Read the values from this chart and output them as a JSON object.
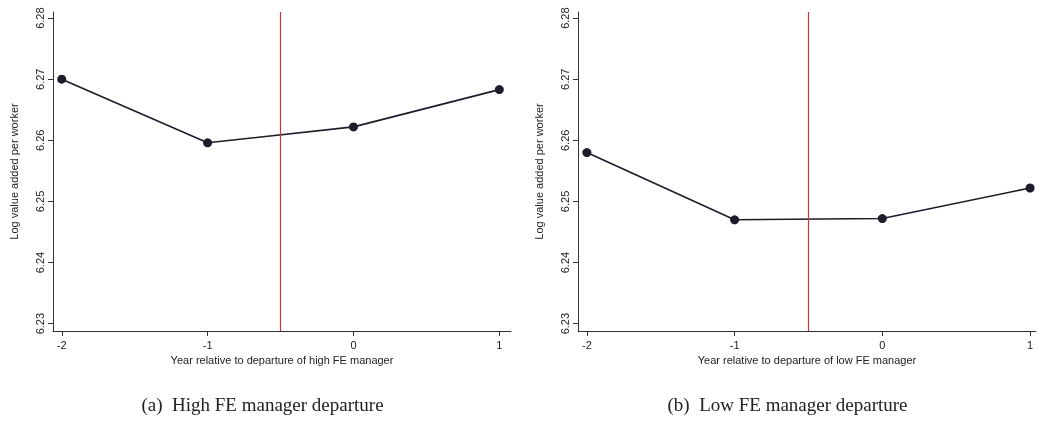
{
  "chart_data": [
    {
      "type": "line",
      "title": "(a)  High FE manager departure",
      "xlabel": "Year relative to departure of high FE manager",
      "ylabel": "Log value added per worker",
      "x": [
        -2,
        -1,
        0,
        1
      ],
      "series": [
        {
          "color": "#1c1c2a",
          "values": [
            6.27,
            6.2596,
            6.2622,
            6.2683
          ]
        }
      ],
      "xlim": [
        -2.06,
        1.08
      ],
      "xticks": [
        -2,
        -1,
        0,
        1
      ],
      "ylim": [
        6.2288,
        6.281
      ],
      "yticks": [
        6.23,
        6.24,
        6.25,
        6.26,
        6.27,
        6.28
      ],
      "ref_lines": [
        {
          "axis": "x",
          "value": -0.5,
          "color": "#c0393b"
        }
      ],
      "grid": false,
      "marker": "circle",
      "line_style": "solid"
    },
    {
      "type": "line",
      "title": "(b)  Low FE manager departure",
      "xlabel": "Year relative to departure of low FE manager",
      "ylabel": "Log value added per worker",
      "x": [
        -2,
        -1,
        0,
        1
      ],
      "series": [
        {
          "color": "#1c1c2a",
          "values": [
            6.258,
            6.247,
            6.2472,
            6.2522
          ]
        }
      ],
      "xlim": [
        -2.06,
        1.04
      ],
      "xticks": [
        -2,
        -1,
        0,
        1
      ],
      "ylim": [
        6.2288,
        6.281
      ],
      "yticks": [
        6.23,
        6.24,
        6.25,
        6.26,
        6.27,
        6.28
      ],
      "ref_lines": [
        {
          "axis": "x",
          "value": -0.5,
          "color": "#c0393b"
        }
      ],
      "grid": false,
      "marker": "circle",
      "line_style": "solid"
    }
  ]
}
